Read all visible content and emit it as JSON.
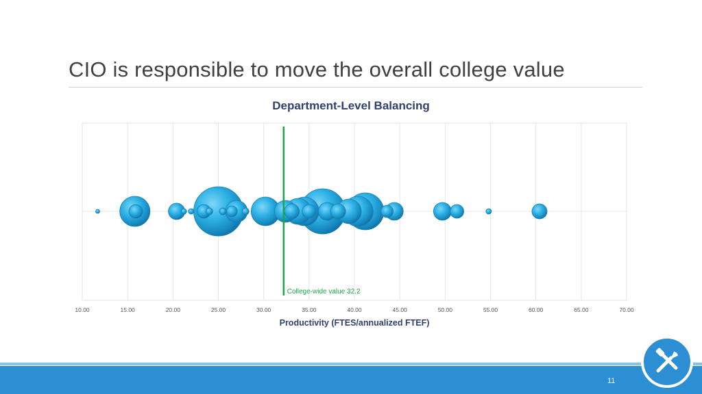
{
  "slide": {
    "title": "CIO is responsible to move the overall college value",
    "page_number": "11"
  },
  "icons": {
    "badge": "tools-icon"
  },
  "colors": {
    "bubble": "#29a8e0",
    "reference_line": "#1aa64b",
    "footer": "#2c8fd3"
  },
  "chart_data": {
    "type": "scatter",
    "title": "Department-Level Balancing",
    "xlabel": "Productivity (FTES/annualized FTEF)",
    "ylabel": "",
    "xlim": [
      10,
      70
    ],
    "x_ticks": [
      "10.00",
      "15.00",
      "20.00",
      "25.00",
      "30.00",
      "35.00",
      "40.00",
      "45.00",
      "50.00",
      "55.00",
      "60.00",
      "65.00",
      "70.00"
    ],
    "grid": true,
    "reference_line": {
      "x": 32.2,
      "label": "College-wide value 32.2"
    },
    "points": [
      {
        "x": 11.7,
        "size": 3
      },
      {
        "x": 15.8,
        "size": 22
      },
      {
        "x": 15.9,
        "size": 10
      },
      {
        "x": 20.4,
        "size": 12
      },
      {
        "x": 21.2,
        "size": 4
      },
      {
        "x": 22.0,
        "size": 4
      },
      {
        "x": 23.4,
        "size": 10
      },
      {
        "x": 24.0,
        "size": 5
      },
      {
        "x": 25.0,
        "size": 36
      },
      {
        "x": 25.5,
        "size": 5
      },
      {
        "x": 26.5,
        "size": 8
      },
      {
        "x": 27.0,
        "size": 16
      },
      {
        "x": 28.0,
        "size": 5
      },
      {
        "x": 30.2,
        "size": 21
      },
      {
        "x": 32.4,
        "size": 16
      },
      {
        "x": 33.1,
        "size": 11
      },
      {
        "x": 33.8,
        "size": 19
      },
      {
        "x": 34.5,
        "size": 21
      },
      {
        "x": 35.0,
        "size": 10
      },
      {
        "x": 36.5,
        "size": 33
      },
      {
        "x": 37.0,
        "size": 13
      },
      {
        "x": 38.2,
        "size": 11
      },
      {
        "x": 39.4,
        "size": 18
      },
      {
        "x": 40.4,
        "size": 22
      },
      {
        "x": 41.2,
        "size": 27
      },
      {
        "x": 43.6,
        "size": 9
      },
      {
        "x": 44.4,
        "size": 13
      },
      {
        "x": 49.7,
        "size": 13
      },
      {
        "x": 51.3,
        "size": 10
      },
      {
        "x": 54.8,
        "size": 4
      },
      {
        "x": 60.4,
        "size": 11
      }
    ]
  }
}
